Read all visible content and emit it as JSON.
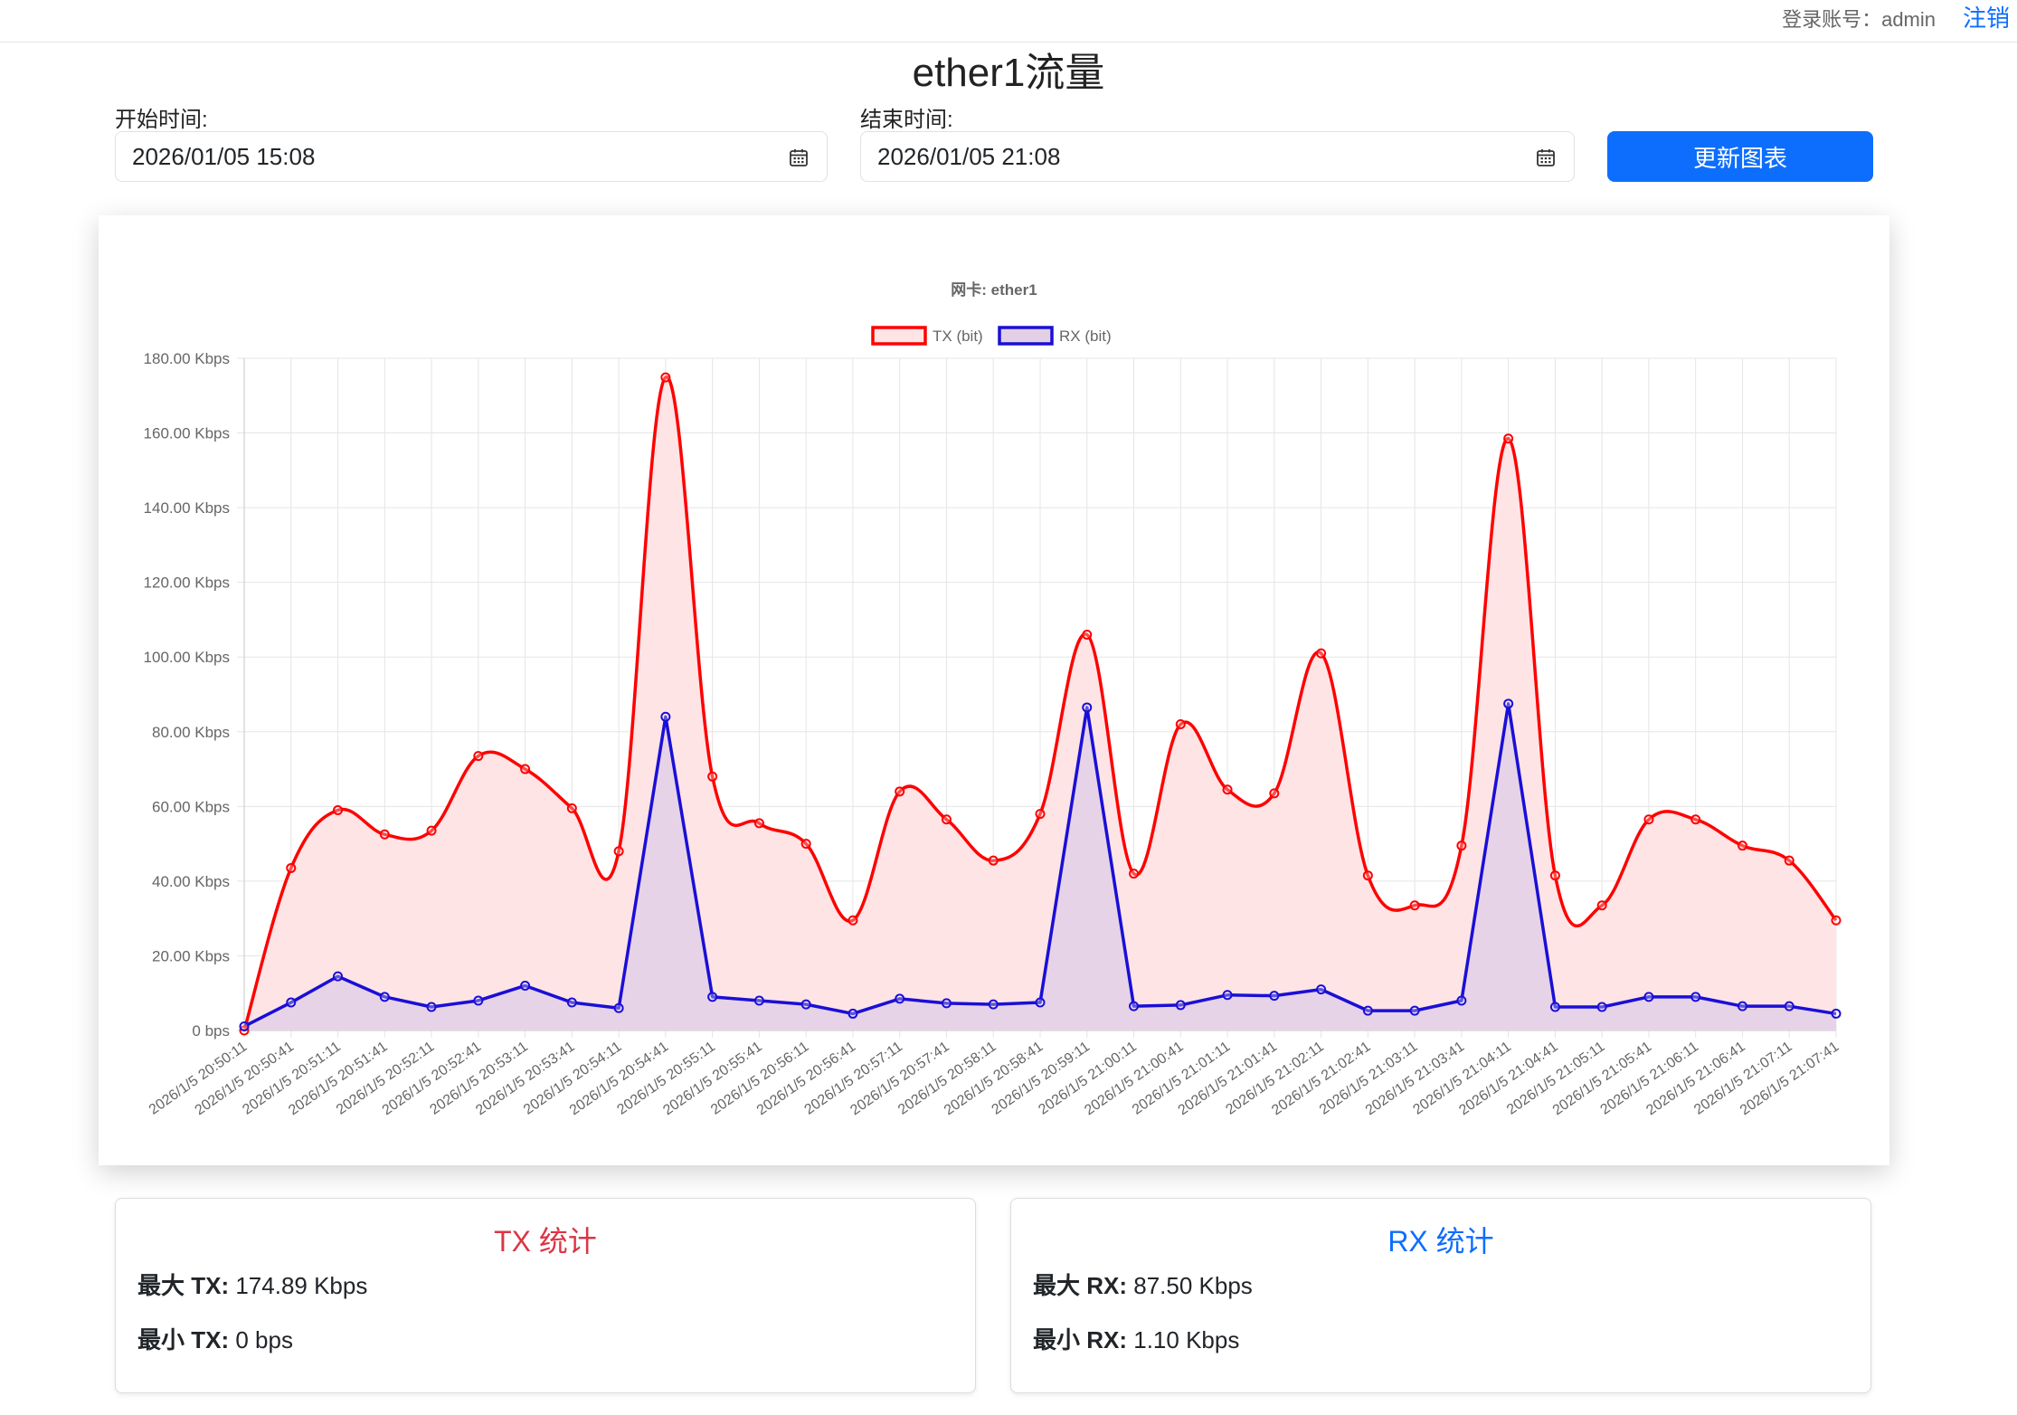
{
  "header": {
    "login_label": "登录账号：admin",
    "logout_label": "注销"
  },
  "page": {
    "title": "ether1流量"
  },
  "form": {
    "start_label": "开始时间:",
    "start_value": "2026/01/05 15:08",
    "end_label": "结束时间:",
    "end_value": "2026/01/05 21:08",
    "update_button": "更新图表",
    "calendar_icon": "calendar-icon"
  },
  "chart_data": {
    "type": "line",
    "title": "网卡: ether1",
    "legend_position": "top",
    "grid": true,
    "ylim": [
      0,
      180
    ],
    "y_unit": "Kbps",
    "y_ticks": [
      "0 bps",
      "20.00 Kbps",
      "40.00 Kbps",
      "60.00 Kbps",
      "80.00 Kbps",
      "100.00 Kbps",
      "120.00 Kbps",
      "140.00 Kbps",
      "160.00 Kbps",
      "180.00 Kbps"
    ],
    "x": [
      "2026/1/5 20:50:11",
      "2026/1/5 20:50:41",
      "2026/1/5 20:51:11",
      "2026/1/5 20:51:41",
      "2026/1/5 20:52:11",
      "2026/1/5 20:52:41",
      "2026/1/5 20:53:11",
      "2026/1/5 20:53:41",
      "2026/1/5 20:54:11",
      "2026/1/5 20:54:41",
      "2026/1/5 20:55:11",
      "2026/1/5 20:55:41",
      "2026/1/5 20:56:11",
      "2026/1/5 20:56:41",
      "2026/1/5 20:57:11",
      "2026/1/5 20:57:41",
      "2026/1/5 20:58:11",
      "2026/1/5 20:58:41",
      "2026/1/5 20:59:11",
      "2026/1/5 21:00:11",
      "2026/1/5 21:00:41",
      "2026/1/5 21:01:11",
      "2026/1/5 21:01:41",
      "2026/1/5 21:02:11",
      "2026/1/5 21:02:41",
      "2026/1/5 21:03:11",
      "2026/1/5 21:03:41",
      "2026/1/5 21:04:11",
      "2026/1/5 21:04:41",
      "2026/1/5 21:05:11",
      "2026/1/5 21:05:41",
      "2026/1/5 21:06:11",
      "2026/1/5 21:06:41",
      "2026/1/5 21:07:11",
      "2026/1/5 21:07:41"
    ],
    "series": [
      {
        "name": "TX (bit)",
        "color": "#ff0000",
        "fill": "#ffe4e6",
        "values": [
          0,
          43.5,
          59,
          52.5,
          53.5,
          73.5,
          70,
          59.5,
          48,
          174.89,
          68,
          55.5,
          50,
          29.5,
          64,
          56.5,
          45.5,
          58,
          106,
          42,
          82,
          64.5,
          63.5,
          101,
          41.5,
          33.5,
          49.5,
          158.5,
          41.5,
          33.5,
          56.5,
          56.5,
          49.5,
          45.5,
          29.5
        ]
      },
      {
        "name": "RX (bit)",
        "color": "#1a0fd6",
        "fill": "#e3d0e6",
        "values": [
          1.1,
          7.5,
          14.5,
          9,
          6.3,
          8,
          12,
          7.5,
          6,
          84,
          9,
          8,
          7,
          4.5,
          8.5,
          7.3,
          7,
          7.5,
          86.5,
          6.5,
          6.8,
          9.5,
          9.3,
          11,
          5.3,
          5.3,
          8,
          87.5,
          6.3,
          6.3,
          9,
          9,
          6.5,
          6.5,
          4.5
        ]
      }
    ]
  },
  "tx_stats": {
    "title": "TX 统计",
    "max_label": "最大 TX:",
    "max_value": "174.89 Kbps",
    "min_label": "最小 TX:",
    "min_value": "0 bps",
    "color": "#dc3545"
  },
  "rx_stats": {
    "title": "RX 统计",
    "max_label": "最大 RX:",
    "max_value": "87.50 Kbps",
    "min_label": "最小 RX:",
    "min_value": "1.10 Kbps",
    "color": "#0d6efd"
  }
}
